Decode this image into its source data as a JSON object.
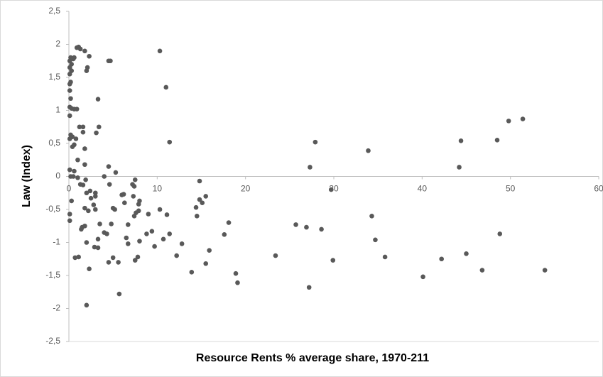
{
  "chart_data": {
    "type": "scatter",
    "x_label": "Resource Rents % average share, 1970-211",
    "y_label": "Law (Index)",
    "color": "#595959",
    "xlim": [
      0,
      60
    ],
    "xticks": [
      0,
      10,
      20,
      30,
      40,
      50,
      60
    ],
    "ylim": [
      -2.5,
      2.5
    ],
    "yticks": [
      {
        "value": 2.5,
        "label": "2,5"
      },
      2,
      {
        "value": 1.5,
        "label": "1,5"
      },
      1,
      {
        "value": 0.5,
        "label": "0,5"
      },
      0,
      {
        "value": -0.5,
        "label": "-0,5"
      },
      -1,
      {
        "value": -1.5,
        "label": "-1,5"
      },
      -2,
      {
        "value": -2.5,
        "label": "-2,5"
      }
    ],
    "x": [
      0.2,
      0.1,
      0.3,
      0.1,
      0.1,
      0.3,
      0.5,
      0.6,
      0.2,
      0.1,
      0.1,
      0.2,
      0.1,
      0.3,
      0.6,
      0.9,
      0.1,
      0.2,
      0.4,
      0.1,
      0.8,
      0.6,
      0.4,
      1.0,
      0.1,
      0.6,
      0.2,
      0.5,
      1.0,
      0.3,
      0.1,
      0.1,
      0.7,
      1.1,
      0.9,
      1.1,
      1.3,
      1.8,
      2.3,
      2.0,
      2.1,
      1.2,
      1.6,
      1.6,
      1.8,
      1.8,
      1.9,
      1.3,
      1.6,
      2.0,
      2.4,
      2.5,
      1.8,
      2.2,
      1.5,
      1.8,
      1.4,
      2.0,
      2.3,
      2.0,
      3.1,
      3.4,
      3.3,
      4.5,
      4.7,
      3.0,
      3.0,
      2.8,
      3.0,
      2.9,
      3.3,
      3.3,
      3.5,
      4.0,
      4.5,
      4.6,
      5.3,
      5.0,
      5.2,
      4.0,
      4.3,
      4.5,
      4.8,
      5.0,
      5.6,
      5.7,
      6.0,
      6.2,
      6.3,
      6.5,
      6.7,
      6.7,
      7.2,
      7.4,
      7.5,
      7.3,
      7.4,
      7.6,
      7.9,
      8.0,
      7.9,
      7.5,
      8.0,
      7.8,
      8.8,
      9.0,
      9.4,
      9.7,
      10.3,
      11.0,
      11.4,
      10.3,
      10.7,
      11.1,
      11.4,
      12.2,
      12.8,
      13.9,
      14.4,
      14.5,
      14.8,
      14.8,
      15.1,
      15.5,
      15.5,
      15.9,
      17.6,
      18.1,
      18.9,
      19.1,
      23.4,
      25.7,
      26.9,
      27.3,
      27.2,
      27.9,
      28.6,
      29.7,
      29.9,
      33.9,
      34.3,
      34.7,
      35.8,
      40.1,
      42.2,
      44.2,
      44.4,
      45.0,
      46.8,
      48.5,
      48.8,
      49.8,
      51.4,
      53.9
    ],
    "y": [
      1.8,
      1.75,
      1.7,
      1.65,
      1.55,
      1.6,
      1.78,
      1.8,
      1.43,
      1.4,
      1.3,
      1.18,
      1.05,
      1.03,
      1.02,
      1.02,
      0.92,
      0.63,
      0.6,
      0.57,
      0.57,
      0.48,
      0.45,
      0.25,
      0.1,
      0.08,
      0.0,
      0.0,
      -0.02,
      -0.37,
      -0.57,
      -0.67,
      -1.23,
      -1.22,
      1.95,
      1.96,
      1.93,
      1.9,
      1.82,
      1.6,
      1.65,
      0.75,
      0.67,
      0.75,
      0.42,
      0.18,
      -0.05,
      -0.12,
      -0.13,
      -0.25,
      -0.22,
      -0.33,
      -0.48,
      -0.52,
      -0.77,
      -0.75,
      -0.8,
      -1.0,
      -1.4,
      -1.95,
      0.66,
      0.75,
      1.17,
      1.75,
      1.75,
      -0.25,
      -0.3,
      -0.43,
      -0.5,
      -1.07,
      -1.08,
      -0.95,
      -0.72,
      0.0,
      0.15,
      -0.12,
      0.06,
      -0.48,
      -0.5,
      -0.85,
      -0.87,
      -1.3,
      -0.72,
      -1.23,
      -1.3,
      -1.78,
      -0.28,
      -0.27,
      -0.4,
      -0.93,
      -1.02,
      -0.73,
      -0.12,
      -0.15,
      -0.05,
      -0.3,
      -0.6,
      -0.55,
      -0.42,
      -0.37,
      -0.52,
      -1.27,
      -0.98,
      -1.22,
      -0.87,
      -0.57,
      -0.83,
      -1.06,
      1.9,
      1.35,
      0.52,
      -0.5,
      -0.95,
      -0.58,
      -0.87,
      -1.2,
      -1.02,
      -1.45,
      -0.47,
      -0.6,
      -0.35,
      -0.07,
      -0.4,
      -0.3,
      -1.32,
      -1.12,
      -0.88,
      -0.7,
      -1.47,
      -1.61,
      -1.2,
      -0.73,
      -0.77,
      0.14,
      -1.68,
      0.52,
      -0.8,
      -0.2,
      -1.27,
      0.39,
      -0.6,
      -0.96,
      -1.22,
      -1.52,
      -1.25,
      0.14,
      0.54,
      -1.17,
      -1.42,
      0.55,
      -0.87,
      0.84,
      0.87,
      -1.42
    ]
  }
}
